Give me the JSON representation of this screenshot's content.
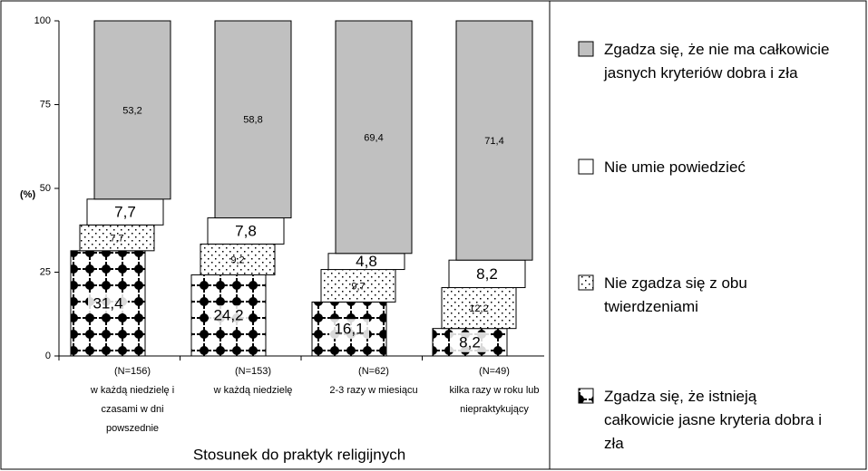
{
  "chart_data": {
    "type": "stacked-bar",
    "y_axis_label": "(%)",
    "x_axis_label": "Stosunek do praktyk religijnych",
    "categories": [
      [
        "(N=156)",
        "w każdą niedzielę i",
        "czasami w dni",
        "powszednie"
      ],
      [
        "(N=153)",
        "w każdą niedzielę"
      ],
      [
        "(N=62)",
        "2-3 razy w miesiącu"
      ],
      [
        "(N=49)",
        "kilka razy w roku lub",
        "niepraktykujący"
      ]
    ],
    "series": [
      {
        "name": "Zgadza się, że istnieją całkowicie jasne kryteria dobra i zła",
        "color": "#000000",
        "pattern": "plus",
        "values": [
          31.4,
          24.2,
          16.1,
          8.2
        ],
        "value_labels": [
          "31,4",
          "24,2",
          "16,1",
          "8,2"
        ]
      },
      {
        "name": "Nie zgadza się z obu twierdzeniami",
        "color": "#000000",
        "pattern": "dots",
        "values": [
          7.7,
          9.2,
          9.7,
          12.2
        ],
        "value_labels": [
          "7,7",
          "9,2",
          "9,7",
          "12,2"
        ]
      },
      {
        "name": "Nie umie powiedzieć",
        "color": "#ffffff",
        "values": [
          7.7,
          7.8,
          4.8,
          8.2
        ],
        "value_labels": [
          "7,7",
          "7,8",
          "4,8",
          "8,2"
        ]
      },
      {
        "name": "Zgadza się, że nie ma całkowicie jasnych kryteriów dobra i zła",
        "color": "#c0c0c0",
        "values": [
          53.2,
          58.8,
          69.4,
          71.4
        ],
        "value_labels": [
          "53,2",
          "58,8",
          "69,4",
          "71,4"
        ]
      }
    ],
    "ylim": [
      0,
      100
    ],
    "yticks": [
      0,
      25,
      50,
      75,
      100
    ]
  }
}
